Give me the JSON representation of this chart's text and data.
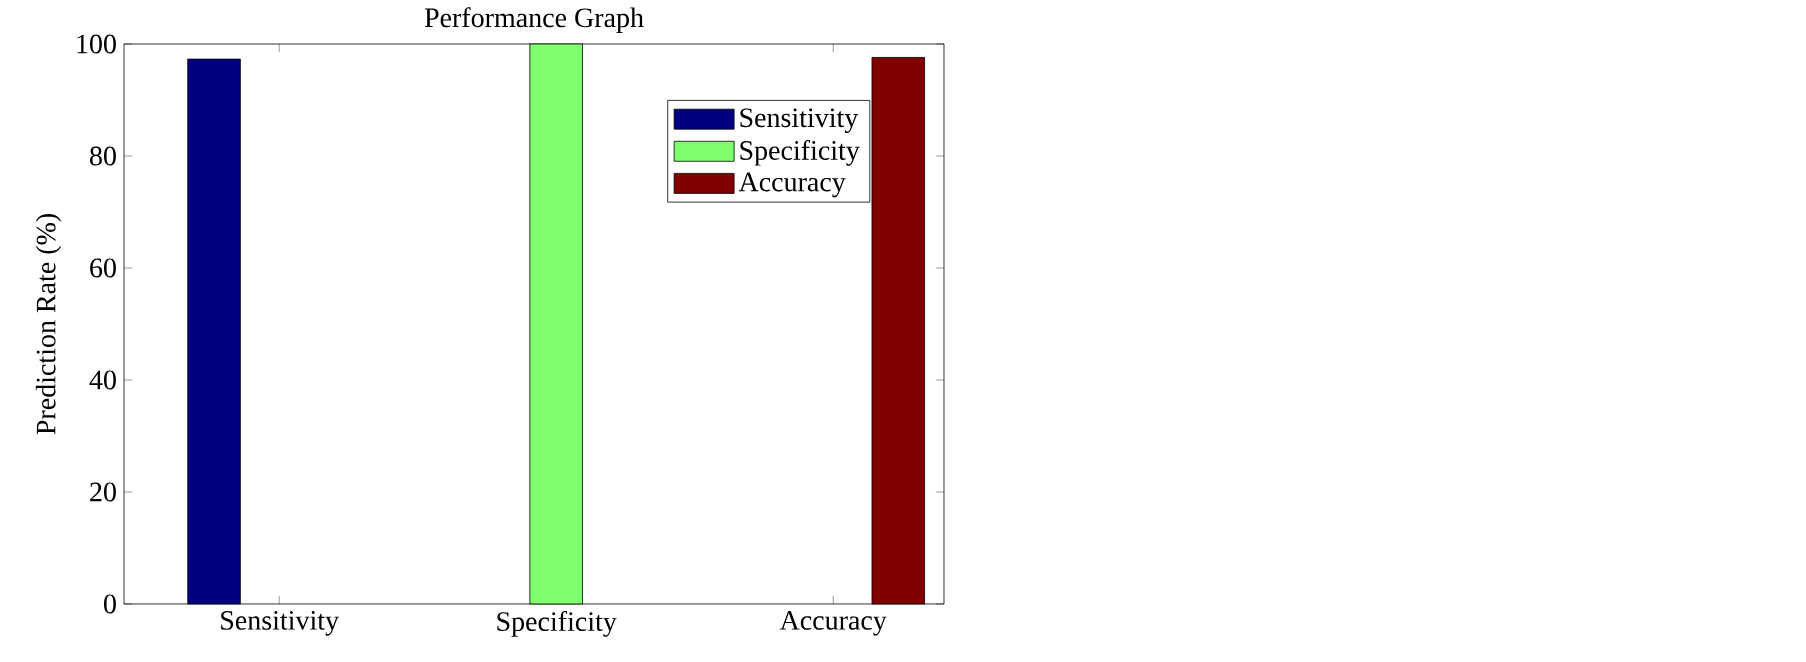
{
  "chart_data": {
    "type": "bar",
    "title": "Performance Graph",
    "ylabel": "Prediction Rate (%)",
    "categories": [
      "Sensitivity",
      "Specificity",
      "Accuracy"
    ],
    "series": [
      {
        "name": "Sensitivity",
        "color": "#000080",
        "values": [
          97.3,
          null,
          null
        ]
      },
      {
        "name": "Specificity",
        "color": "#80ff6e",
        "values": [
          null,
          100,
          null
        ]
      },
      {
        "name": "Accuracy",
        "color": "#800000",
        "values": [
          null,
          null,
          97.6
        ]
      }
    ],
    "ylim": [
      0,
      100
    ],
    "yticks": [
      0,
      20,
      40,
      60,
      80,
      100
    ],
    "grid": false,
    "legend": "top right"
  }
}
